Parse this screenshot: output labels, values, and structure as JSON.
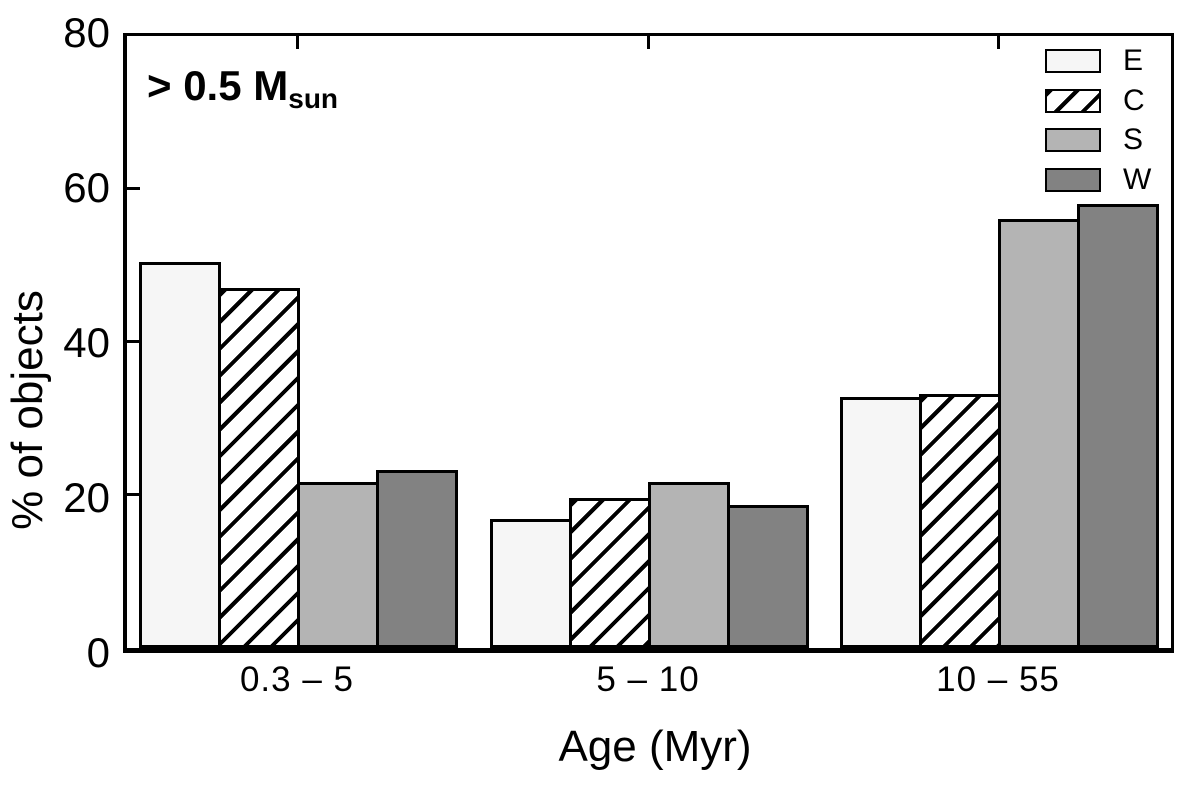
{
  "chart_data": {
    "type": "bar",
    "title": "",
    "xlabel": "Age (Myr)",
    "ylabel": "% of objects",
    "ylim": [
      0,
      80
    ],
    "yticks": [
      0,
      20,
      40,
      60,
      80
    ],
    "categories": [
      "0.3 – 5",
      "5 – 10",
      "10 – 55"
    ],
    "series": [
      {
        "name": "E",
        "fill": "#f6f6f6",
        "pattern": "none",
        "values": [
          50.5,
          16.8,
          32.8
        ]
      },
      {
        "name": "C",
        "fill": "#ffffff",
        "pattern": "diagonal-hatch",
        "values": [
          47.1,
          19.6,
          33.2
        ]
      },
      {
        "name": "S",
        "fill": "#b4b4b4",
        "pattern": "none",
        "values": [
          21.7,
          21.7,
          56.1
        ]
      },
      {
        "name": "W",
        "fill": "#828282",
        "pattern": "none",
        "values": [
          23.3,
          18.7,
          58.1
        ]
      }
    ],
    "annotation": {
      "text": "> 0.5 M",
      "subscript": "sun"
    },
    "legend_position": "top-right",
    "grid": false,
    "outline_color": "#000000",
    "background_color": "#ffffff"
  }
}
